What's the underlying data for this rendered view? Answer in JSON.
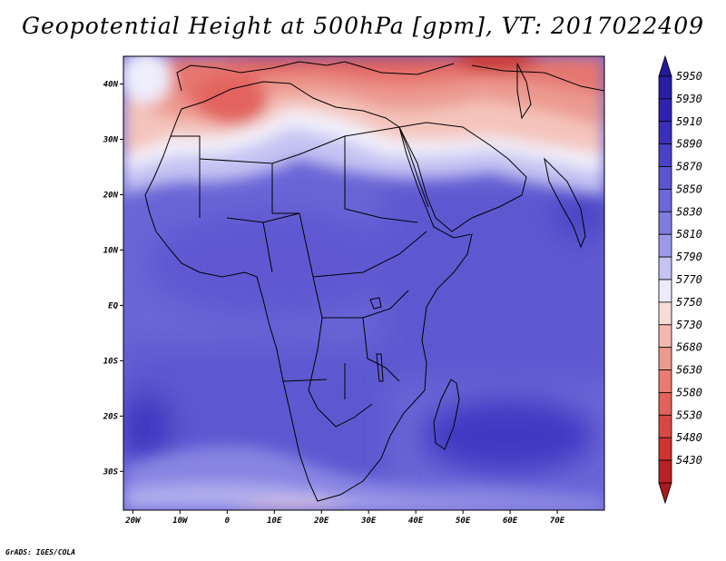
{
  "title": "Geopotential Height at 500hPa [gpm], VT: 2017022409",
  "credit": "GrADS: IGES/COLA",
  "map": {
    "lon_range": [
      -22,
      80
    ],
    "lat_range": [
      -37,
      45
    ],
    "lon_ticks": [
      {
        "lon": -20,
        "label": "20W"
      },
      {
        "lon": -10,
        "label": "10W"
      },
      {
        "lon": 0,
        "label": "0"
      },
      {
        "lon": 10,
        "label": "10E"
      },
      {
        "lon": 20,
        "label": "20E"
      },
      {
        "lon": 30,
        "label": "30E"
      },
      {
        "lon": 40,
        "label": "40E"
      },
      {
        "lon": 50,
        "label": "50E"
      },
      {
        "lon": 60,
        "label": "60E"
      },
      {
        "lon": 70,
        "label": "70E"
      }
    ],
    "lat_ticks": [
      {
        "lat": 40,
        "label": "40N"
      },
      {
        "lat": 30,
        "label": "30N"
      },
      {
        "lat": 20,
        "label": "20N"
      },
      {
        "lat": 10,
        "label": "10N"
      },
      {
        "lat": 0,
        "label": "EQ"
      },
      {
        "lat": -10,
        "label": "10S"
      },
      {
        "lat": -20,
        "label": "20S"
      },
      {
        "lat": -30,
        "label": "30S"
      }
    ]
  },
  "colorbar": {
    "levels": [
      {
        "label": "5950",
        "color": "#2a1ea6"
      },
      {
        "label": "5930",
        "color": "#3022b0"
      },
      {
        "label": "5910",
        "color": "#3a2fbb"
      },
      {
        "label": "5890",
        "color": "#4a42c6"
      },
      {
        "label": "5870",
        "color": "#5b55d0"
      },
      {
        "label": "5850",
        "color": "#6c68d8"
      },
      {
        "label": "5830",
        "color": "#807de0"
      },
      {
        "label": "5810",
        "color": "#9c9ae8"
      },
      {
        "label": "5790",
        "color": "#c4c3f2"
      },
      {
        "label": "5770",
        "color": "#ebebfb"
      },
      {
        "label": "5750",
        "color": "#f6dcd8"
      },
      {
        "label": "5730",
        "color": "#f3b9b1"
      },
      {
        "label": "5680",
        "color": "#ec9a90"
      },
      {
        "label": "5630",
        "color": "#e87c72"
      },
      {
        "label": "5580",
        "color": "#e2615a"
      },
      {
        "label": "5530",
        "color": "#d94744"
      },
      {
        "label": "5480",
        "color": "#cc3331"
      },
      {
        "label": "5430",
        "color": "#b82224"
      }
    ],
    "top_arrow_color": "#221a9a",
    "bottom_arrow_color": "#a81a1c"
  }
}
